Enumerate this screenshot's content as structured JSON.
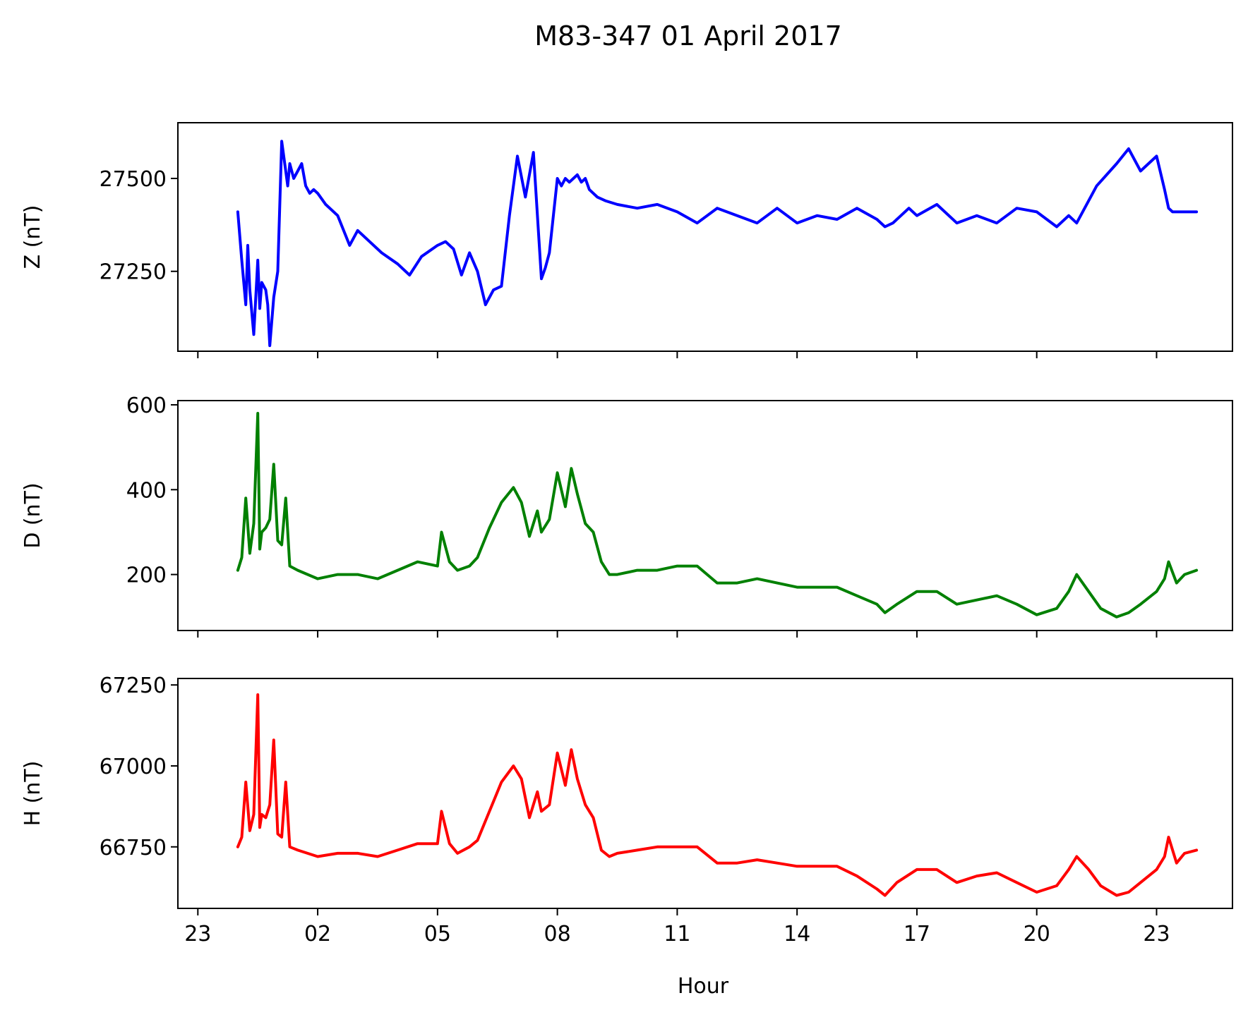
{
  "figure_title": "M83-347 01 April 2017",
  "xlabel": "Hour",
  "x_ticks": [
    "23",
    "02",
    "05",
    "08",
    "11",
    "14",
    "17",
    "20",
    "23"
  ],
  "x_tick_hours": [
    -1,
    2,
    5,
    8,
    11,
    14,
    17,
    20,
    23
  ],
  "chart_data": [
    {
      "type": "line",
      "title": "",
      "xlabel": "",
      "ylabel": "Z (nT)",
      "color": "#0000ff",
      "xlim": [
        -1.5,
        24.9
      ],
      "ylim": [
        27035,
        27650
      ],
      "yticks": [
        27250,
        27500
      ],
      "grid": false,
      "series": [
        {
          "x": [
            0.0,
            0.1,
            0.2,
            0.25,
            0.3,
            0.4,
            0.5,
            0.55,
            0.6,
            0.7,
            0.75,
            0.8,
            0.9,
            1.0,
            1.1,
            1.2,
            1.25,
            1.3,
            1.4,
            1.5,
            1.6,
            1.7,
            1.8,
            1.9,
            2.0,
            2.2,
            2.5,
            2.8,
            3.0,
            3.3,
            3.6,
            4.0,
            4.3,
            4.6,
            5.0,
            5.2,
            5.4,
            5.6,
            5.8,
            6.0,
            6.2,
            6.4,
            6.6,
            6.8,
            7.0,
            7.2,
            7.4,
            7.6,
            7.7,
            7.8,
            8.0,
            8.1,
            8.2,
            8.3,
            8.4,
            8.5,
            8.6,
            8.7,
            8.8,
            8.9,
            9.0,
            9.2,
            9.5,
            10.0,
            10.5,
            11.0,
            11.5,
            12.0,
            12.5,
            13.0,
            13.5,
            14.0,
            14.5,
            15.0,
            15.5,
            16.0,
            16.2,
            16.4,
            16.8,
            17.0,
            17.5,
            18.0,
            18.5,
            19.0,
            19.5,
            20.0,
            20.5,
            20.8,
            21.0,
            21.5,
            22.0,
            22.3,
            22.6,
            23.0,
            23.2,
            23.3,
            23.4,
            23.5,
            23.6,
            23.7,
            23.8,
            24.0
          ],
          "y": [
            27410,
            27280,
            27160,
            27320,
            27200,
            27080,
            27280,
            27150,
            27220,
            27200,
            27160,
            27050,
            27180,
            27250,
            27600,
            27520,
            27480,
            27540,
            27500,
            27520,
            27540,
            27480,
            27460,
            27470,
            27460,
            27430,
            27400,
            27320,
            27360,
            27330,
            27300,
            27270,
            27240,
            27290,
            27320,
            27330,
            27310,
            27240,
            27300,
            27250,
            27160,
            27200,
            27210,
            27400,
            27560,
            27450,
            27570,
            27230,
            27260,
            27300,
            27500,
            27480,
            27500,
            27490,
            27500,
            27510,
            27490,
            27500,
            27470,
            27460,
            27450,
            27440,
            27430,
            27420,
            27430,
            27410,
            27380,
            27420,
            27400,
            27380,
            27420,
            27380,
            27400,
            27390,
            27420,
            27390,
            27370,
            27380,
            27420,
            27400,
            27430,
            27380,
            27400,
            27380,
            27420,
            27410,
            27370,
            27400,
            27380,
            27480,
            27540,
            27580,
            27520,
            27560,
            27470,
            27420,
            27410,
            27410,
            27410,
            27410,
            27410,
            27410
          ]
        }
      ]
    },
    {
      "type": "line",
      "title": "",
      "xlabel": "",
      "ylabel": "D (nT)",
      "color": "#008000",
      "xlim": [
        -1.5,
        24.9
      ],
      "ylim": [
        68,
        610
      ],
      "yticks": [
        200,
        400,
        600
      ],
      "grid": false,
      "series": [
        {
          "x": [
            0.0,
            0.1,
            0.2,
            0.3,
            0.4,
            0.5,
            0.55,
            0.6,
            0.7,
            0.8,
            0.9,
            1.0,
            1.1,
            1.2,
            1.3,
            1.5,
            2.0,
            2.5,
            3.0,
            3.5,
            4.0,
            4.5,
            5.0,
            5.1,
            5.3,
            5.5,
            5.8,
            6.0,
            6.3,
            6.6,
            6.9,
            7.1,
            7.3,
            7.5,
            7.6,
            7.8,
            8.0,
            8.2,
            8.35,
            8.5,
            8.7,
            8.9,
            9.1,
            9.3,
            9.5,
            10.0,
            10.5,
            11.0,
            11.5,
            12.0,
            12.5,
            13.0,
            13.5,
            14.0,
            14.5,
            15.0,
            15.5,
            16.0,
            16.2,
            16.5,
            17.0,
            17.5,
            18.0,
            18.5,
            19.0,
            19.5,
            20.0,
            20.5,
            20.8,
            21.0,
            21.3,
            21.6,
            22.0,
            22.3,
            22.6,
            23.0,
            23.2,
            23.3,
            23.5,
            23.7,
            24.0
          ],
          "y": [
            210,
            240,
            380,
            250,
            320,
            580,
            260,
            300,
            310,
            330,
            460,
            280,
            270,
            380,
            220,
            210,
            190,
            200,
            200,
            190,
            210,
            230,
            220,
            300,
            230,
            210,
            220,
            240,
            310,
            370,
            405,
            370,
            290,
            350,
            300,
            330,
            440,
            360,
            450,
            390,
            320,
            300,
            230,
            200,
            200,
            210,
            210,
            220,
            220,
            180,
            180,
            190,
            180,
            170,
            170,
            170,
            150,
            130,
            110,
            130,
            160,
            160,
            130,
            140,
            150,
            130,
            105,
            120,
            160,
            200,
            160,
            120,
            100,
            110,
            130,
            160,
            190,
            230,
            180,
            200,
            210
          ]
        }
      ]
    },
    {
      "type": "line",
      "title": "",
      "xlabel": "Hour",
      "ylabel": "H (nT)",
      "color": "#ff0000",
      "xlim": [
        -1.5,
        24.9
      ],
      "ylim": [
        66560,
        67270
      ],
      "yticks": [
        66750,
        67000,
        67250
      ],
      "grid": false,
      "series": [
        {
          "x": [
            0.0,
            0.1,
            0.2,
            0.3,
            0.4,
            0.5,
            0.55,
            0.6,
            0.7,
            0.8,
            0.9,
            1.0,
            1.1,
            1.2,
            1.3,
            1.5,
            2.0,
            2.5,
            3.0,
            3.5,
            4.0,
            4.5,
            5.0,
            5.1,
            5.3,
            5.5,
            5.8,
            6.0,
            6.3,
            6.6,
            6.9,
            7.1,
            7.3,
            7.5,
            7.6,
            7.8,
            8.0,
            8.2,
            8.35,
            8.5,
            8.7,
            8.9,
            9.1,
            9.3,
            9.5,
            10.0,
            10.5,
            11.0,
            11.5,
            12.0,
            12.5,
            13.0,
            13.5,
            14.0,
            14.5,
            15.0,
            15.5,
            16.0,
            16.2,
            16.5,
            17.0,
            17.5,
            18.0,
            18.5,
            19.0,
            19.5,
            20.0,
            20.5,
            20.8,
            21.0,
            21.3,
            21.6,
            22.0,
            22.3,
            22.6,
            23.0,
            23.2,
            23.3,
            23.5,
            23.7,
            24.0
          ],
          "y": [
            66750,
            66780,
            66950,
            66800,
            66850,
            67220,
            66810,
            66850,
            66840,
            66880,
            67080,
            66790,
            66780,
            66950,
            66750,
            66740,
            66720,
            66730,
            66730,
            66720,
            66740,
            66760,
            66760,
            66860,
            66760,
            66730,
            66750,
            66770,
            66860,
            66950,
            67000,
            66960,
            66840,
            66920,
            66860,
            66880,
            67040,
            66940,
            67050,
            66960,
            66880,
            66840,
            66740,
            66720,
            66730,
            66740,
            66750,
            66750,
            66750,
            66700,
            66700,
            66710,
            66700,
            66690,
            66690,
            66690,
            66660,
            66620,
            66600,
            66640,
            66680,
            66680,
            66640,
            66660,
            66670,
            66640,
            66610,
            66630,
            66680,
            66720,
            66680,
            66630,
            66600,
            66610,
            66640,
            66680,
            66720,
            66780,
            66700,
            66730,
            66740
          ]
        }
      ]
    }
  ]
}
